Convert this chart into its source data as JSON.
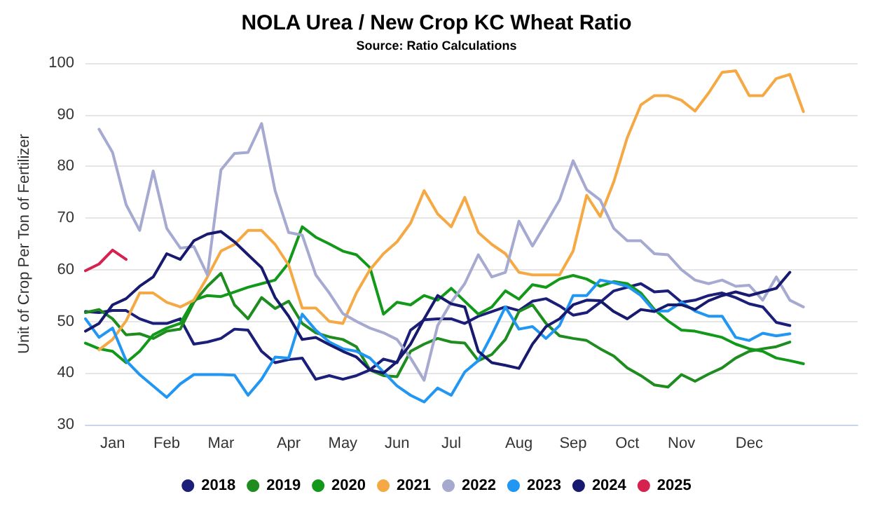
{
  "chart_data": {
    "type": "line",
    "title": "NOLA Urea / New Crop KC Wheat Ratio",
    "subtitle": "Source: Ratio Calculations",
    "ylabel": "Unit of Crop Per Ton of Fertilizer",
    "categories": [
      null,
      null,
      "Jan",
      null,
      null,
      null,
      "Feb",
      null,
      null,
      null,
      "Mar",
      null,
      null,
      null,
      null,
      "Apr",
      null,
      null,
      null,
      "May",
      null,
      null,
      null,
      "Jun",
      null,
      null,
      null,
      "Jul",
      null,
      null,
      null,
      null,
      "Aug",
      null,
      null,
      null,
      "Sep",
      null,
      null,
      null,
      "Oct",
      null,
      null,
      null,
      "Nov",
      null,
      null,
      null,
      null,
      "Dec",
      null,
      null,
      null,
      null,
      null,
      null,
      null,
      null
    ],
    "ylim": [
      30,
      100
    ],
    "yticks": [
      30,
      40,
      50,
      60,
      70,
      80,
      90,
      100
    ],
    "grid": "y",
    "legend": "bottom",
    "marker": "none",
    "line_style": "solid",
    "series": [
      {
        "name": "2018",
        "color": "#1b1f7a",
        "values": [
          51.9,
          51.7,
          52.1,
          52.1,
          50.5,
          49.6,
          49.6,
          50.5,
          45.6,
          46,
          46.7,
          48.5,
          48.3,
          44.2,
          42,
          42.6,
          42.9,
          38.8,
          39.5,
          38.8,
          39.5,
          40.6,
          42.7,
          42,
          48.3,
          50.3,
          50.5,
          50.5,
          49.6,
          51,
          51.9,
          52.8,
          52.1,
          53.9,
          54.4,
          53,
          51.2,
          51.7,
          53.7,
          55.9,
          56.6,
          57.3,
          55.7,
          55.9,
          53.7,
          54.1,
          55,
          55.5,
          54.6,
          53.4,
          52.8,
          49.8,
          49.2,
          null,
          null,
          null,
          null,
          null
        ]
      },
      {
        "name": "2019",
        "color": "#1e8c1e",
        "values": [
          51.7,
          52.3,
          50.5,
          47.4,
          47.6,
          46.7,
          48.1,
          48.5,
          53.7,
          56.8,
          59.3,
          53.2,
          50.5,
          54.6,
          52.5,
          53.9,
          49.6,
          47.8,
          47,
          46.5,
          45.1,
          40.6,
          39.5,
          39.3,
          44.2,
          45.6,
          46.7,
          46,
          45.8,
          42.4,
          43.6,
          46.5,
          51.9,
          53.2,
          49.6,
          47.2,
          46.7,
          46.3,
          44.7,
          43.3,
          41,
          39.5,
          37.7,
          37.3,
          39.7,
          38.4,
          39.8,
          41,
          42.9,
          44.2,
          44.7,
          45.1,
          46,
          null,
          null,
          null,
          null,
          null
        ]
      },
      {
        "name": "2020",
        "color": "#12991a",
        "values": [
          45.8,
          44.7,
          44.2,
          42,
          44.2,
          47.4,
          48.7,
          49.6,
          54.1,
          55,
          54.8,
          55.7,
          56.6,
          57.3,
          58,
          61.3,
          68.3,
          66.3,
          65,
          63.6,
          62.9,
          60.4,
          51.4,
          53.7,
          53.2,
          55,
          54.1,
          56.4,
          53.9,
          51.4,
          52.8,
          55.9,
          54.3,
          57.1,
          56.6,
          58.2,
          58.9,
          58.2,
          56.8,
          57.7,
          57.3,
          55.5,
          52.3,
          50.1,
          48.3,
          48.1,
          47.5,
          46.9,
          45.6,
          44.7,
          44.2,
          42.9,
          42.4,
          41.8,
          null,
          null,
          null,
          null
        ]
      },
      {
        "name": "2021",
        "color": "#f5a945",
        "values": [
          null,
          44.5,
          46.5,
          50.1,
          55.5,
          55.5,
          53.7,
          52.8,
          54.1,
          58.6,
          63.6,
          64.9,
          67.6,
          67.6,
          64.9,
          60.9,
          52.6,
          52.6,
          50,
          49.6,
          55.5,
          60,
          63.1,
          65.4,
          69,
          75.3,
          70.8,
          68.3,
          74,
          67.2,
          64.9,
          63.1,
          59.5,
          59,
          59,
          59,
          63.6,
          74.4,
          70.3,
          77,
          85.6,
          91.9,
          93.7,
          93.7,
          92.8,
          90.7,
          94.2,
          98.2,
          98.5,
          93.7,
          93.7,
          97,
          97.8,
          90.6,
          null,
          null,
          null,
          null
        ]
      },
      {
        "name": "2022",
        "color": "#a6a9d0",
        "values": [
          null,
          87.2,
          82.7,
          72.6,
          67.6,
          79.1,
          68,
          64.2,
          64.5,
          59,
          79.3,
          82.5,
          82.7,
          88.3,
          75.3,
          67.2,
          66.7,
          59,
          55.5,
          51.5,
          50,
          48.7,
          47.8,
          46.5,
          42.9,
          38.6,
          49.2,
          53.7,
          57.3,
          62.9,
          58.6,
          59.5,
          69.4,
          64.6,
          69,
          73.5,
          81.1,
          75.5,
          73.5,
          68,
          65.6,
          65.6,
          63.1,
          62.9,
          60,
          58,
          57.3,
          58,
          56.8,
          57,
          54.1,
          58.6,
          54.1,
          52.8,
          null,
          null,
          null,
          null
        ]
      },
      {
        "name": "2023",
        "color": "#2196f3",
        "values": [
          50.5,
          46.9,
          48.7,
          42.4,
          39.7,
          37.5,
          35.3,
          37.9,
          39.7,
          39.7,
          39.7,
          39.6,
          35.7,
          38.8,
          43.1,
          42.9,
          51.4,
          48.3,
          46,
          44.7,
          44.2,
          42.9,
          40.2,
          37.5,
          35.7,
          34.4,
          37.1,
          35.7,
          40.2,
          42.4,
          47.4,
          52.8,
          48.5,
          49,
          46.7,
          49.2,
          55,
          55,
          58,
          57.5,
          56.8,
          55,
          52,
          52,
          53.7,
          52,
          51,
          51,
          46.9,
          46.3,
          47.7,
          47.2,
          47.6,
          null,
          null,
          null,
          null,
          null
        ]
      },
      {
        "name": "2024",
        "color": "#171a6e",
        "values": [
          48.1,
          49.6,
          53.2,
          54.4,
          56.8,
          58.6,
          63.1,
          62,
          65.6,
          66.9,
          67.4,
          65.4,
          62.9,
          60.4,
          54.6,
          51,
          46.5,
          46.9,
          45.5,
          44.2,
          43.1,
          40.6,
          40,
          42.2,
          45.6,
          50.5,
          55,
          53.4,
          52.8,
          44.2,
          42,
          41.5,
          40.9,
          45.6,
          49,
          50.5,
          53.2,
          54.1,
          54,
          51.9,
          50.5,
          52.3,
          51.9,
          53.2,
          53.2,
          52.3,
          54,
          55,
          55.7,
          55,
          55.7,
          56.4,
          59.5,
          null,
          null,
          null,
          null,
          null
        ]
      },
      {
        "name": "2025",
        "color": "#d6224f",
        "values": [
          59.8,
          61.1,
          63.8,
          62,
          null,
          null,
          null,
          null,
          null,
          null,
          null,
          null,
          null,
          null,
          null,
          null,
          null,
          null,
          null,
          null,
          null,
          null,
          null,
          null,
          null,
          null,
          null,
          null,
          null,
          null,
          null,
          null,
          null,
          null,
          null,
          null,
          null,
          null,
          null,
          null,
          null,
          null,
          null,
          null,
          null,
          null,
          null,
          null,
          null,
          null,
          null,
          null,
          null,
          null,
          null,
          null,
          null,
          null
        ]
      }
    ]
  }
}
